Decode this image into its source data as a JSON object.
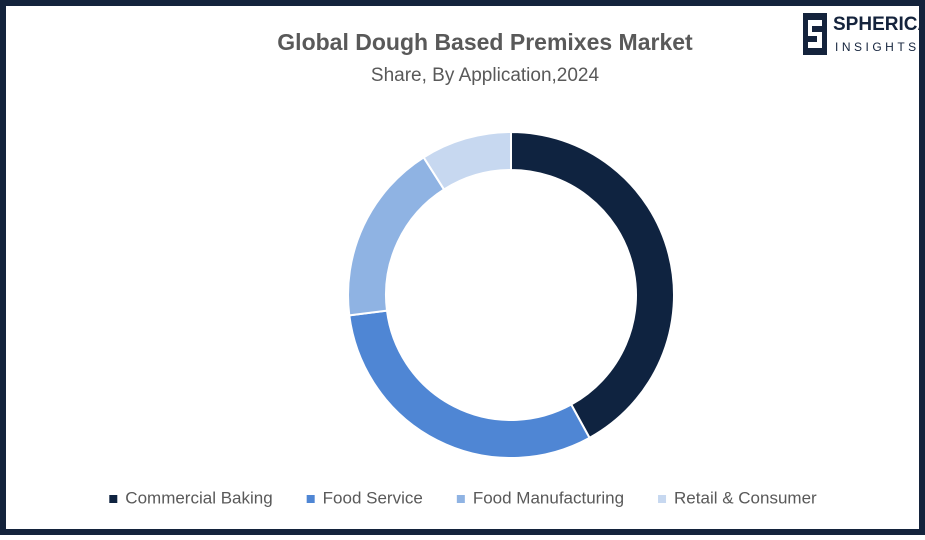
{
  "chart_data": {
    "type": "donut",
    "title": "Global Dough Based Premixes Market",
    "subtitle": "Share, By Application,2024",
    "categories": [
      "Commercial Baking",
      "Food Service",
      "Food Manufacturing",
      "Retail & Consumer"
    ],
    "values": [
      42,
      31,
      18,
      9
    ],
    "colors": [
      "#0f2340",
      "#4f86d4",
      "#8fb3e3",
      "#c7d8f0"
    ],
    "legend": "bottom"
  },
  "logo": {
    "name": "SPHERICAL",
    "tagline": "INSIGHTS"
  }
}
